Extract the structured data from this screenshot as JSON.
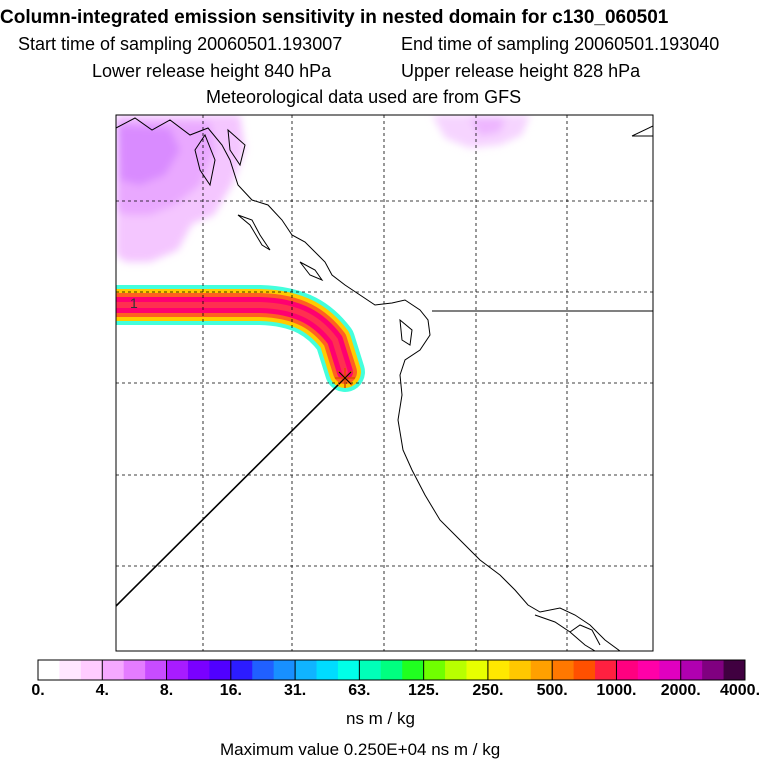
{
  "header": {
    "title": "Column-integrated emission sensitivity in nested domain for c130_060501",
    "start_time": "Start time of sampling 20060501.193007",
    "end_time": "End time of sampling 20060501.193040",
    "lower_release": "Lower release height  840 hPa",
    "upper_release": "Upper release height  828 hPa",
    "met_data": "Meteorological data used are from GFS"
  },
  "map": {
    "plume_label": "1"
  },
  "colorbar": {
    "ticks": [
      "0.",
      "4.",
      "8.",
      "16.",
      "31.",
      "63.",
      "125.",
      "250.",
      "500.",
      "1000.",
      "2000.",
      "4000."
    ],
    "colors": [
      "#ffffff",
      "#ffe6ff",
      "#ffccff",
      "#f5a8ff",
      "#e47cff",
      "#c84cff",
      "#a81cff",
      "#7a00ff",
      "#5000ff",
      "#2c1cff",
      "#2060ff",
      "#1890ff",
      "#10b4ff",
      "#00dcff",
      "#00ffe8",
      "#00ffb8",
      "#00ff80",
      "#20ff20",
      "#70ff00",
      "#b8ff00",
      "#e8ff00",
      "#ffe800",
      "#ffc800",
      "#ffa000",
      "#ff7800",
      "#ff5000",
      "#ff2040",
      "#ff0080",
      "#ff00a8",
      "#e000c0",
      "#b000b0",
      "#800080",
      "#400040"
    ],
    "units": "ns m / kg",
    "max_value": "Maximum value  0.250E+04 ns m / kg"
  }
}
